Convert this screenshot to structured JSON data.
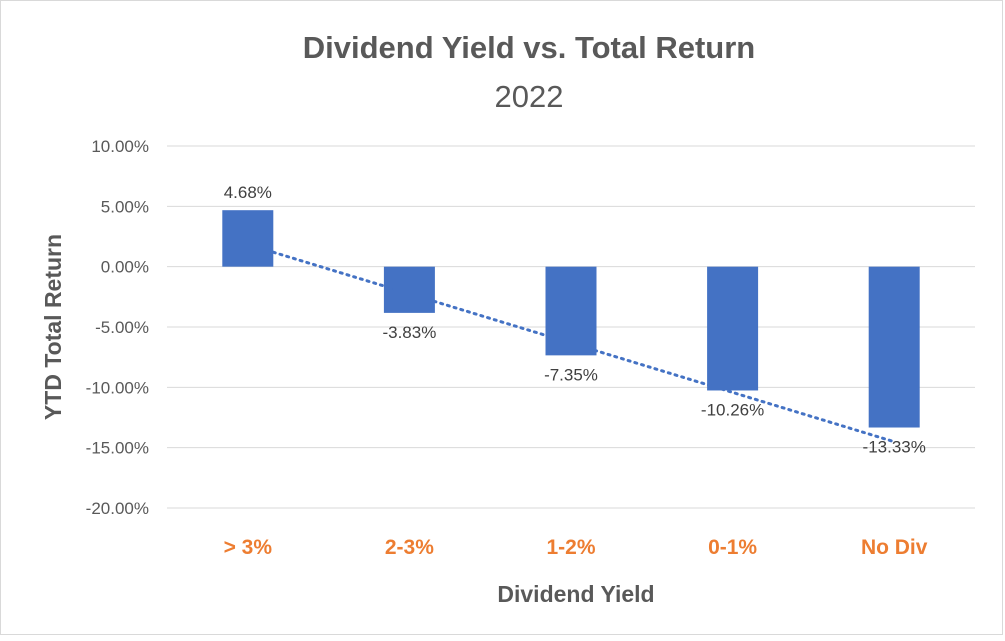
{
  "chart_data": {
    "type": "bar",
    "title": "Dividend Yield vs. Total Return",
    "subtitle": "2022",
    "xlabel": "Dividend Yield",
    "ylabel": "YTD Total Return",
    "categories": [
      "> 3%",
      "2-3%",
      "1-2%",
      "0-1%",
      "No Div"
    ],
    "values": [
      4.68,
      -3.83,
      -7.35,
      -10.26,
      -13.33
    ],
    "data_labels": [
      "4.68%",
      "-3.83%",
      "-7.35%",
      "-10.26%",
      "-13.33%"
    ],
    "ylim": [
      -20,
      10
    ],
    "yticks": [
      10,
      5,
      0,
      -5,
      -10,
      -15,
      -20
    ],
    "ytick_labels": [
      "10.00%",
      "5.00%",
      "0.00%",
      "-5.00%",
      "-10.00%",
      "-15.00%",
      "-20.00%"
    ],
    "trendline": "linear",
    "trendline_style": "dotted",
    "grid": true,
    "legend": "none",
    "bar_color": "#4472c4",
    "category_label_color": "#ed7d31",
    "trendline_color": "#4472c4"
  }
}
